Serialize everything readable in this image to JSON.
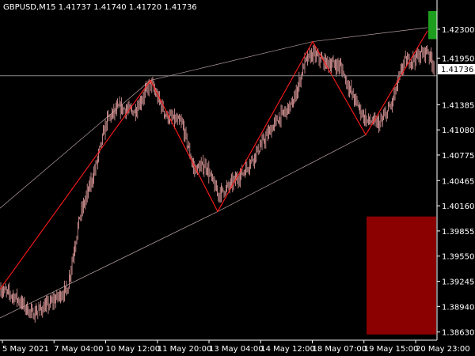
{
  "chart_data": {
    "type": "candlestick",
    "title": "GBPUSD,M15  1.41737 1.41740 1.41720 1.41736",
    "symbol": "GBPUSD",
    "timeframe": "M15",
    "ohlc": {
      "open": "1.41737",
      "high": "1.41740",
      "low": "1.41720",
      "close": "1.41736"
    },
    "current_price": 1.41736,
    "current_price_label": "1.41736",
    "y_ticks": [
      "1.42300",
      "1.41950",
      "1.41385",
      "1.41080",
      "1.40775",
      "1.40465",
      "1.40160",
      "1.39855",
      "1.39550",
      "1.39245",
      "1.38940",
      "1.38630"
    ],
    "x_ticks": [
      "5 May 2021",
      "7 May 04:00",
      "10 May 12:00",
      "11 May 20:00",
      "13 May 04:00",
      "14 May 12:00",
      "18 May 07:00",
      "19 May 15:00",
      "20 May 23:00"
    ],
    "ylim": [
      1.3855,
      1.4252
    ],
    "zigzag": [
      [
        0,
        1.3915
      ],
      [
        190,
        1.4168
      ],
      [
        275,
        1.4009
      ],
      [
        395,
        1.4215
      ],
      [
        462,
        1.4102
      ],
      [
        540,
        1.4228
      ]
    ],
    "channel_upper": [
      [
        0,
        1.4013
      ],
      [
        190,
        1.4168
      ],
      [
        395,
        1.4215
      ],
      [
        540,
        1.4232
      ]
    ],
    "channel_lower": [
      [
        0,
        1.388
      ],
      [
        275,
        1.4009
      ],
      [
        462,
        1.4102
      ]
    ],
    "price_path": [
      [
        0,
        1.3915
      ],
      [
        20,
        1.3905
      ],
      [
        40,
        1.3885
      ],
      [
        60,
        1.3895
      ],
      [
        85,
        1.3915
      ],
      [
        100,
        1.4
      ],
      [
        120,
        1.406
      ],
      [
        135,
        1.412
      ],
      [
        150,
        1.4135
      ],
      [
        170,
        1.413
      ],
      [
        190,
        1.4165
      ],
      [
        210,
        1.4125
      ],
      [
        230,
        1.4115
      ],
      [
        245,
        1.406
      ],
      [
        260,
        1.4065
      ],
      [
        275,
        1.403
      ],
      [
        290,
        1.404
      ],
      [
        310,
        1.406
      ],
      [
        330,
        1.409
      ],
      [
        350,
        1.412
      ],
      [
        370,
        1.414
      ],
      [
        385,
        1.419
      ],
      [
        395,
        1.42
      ],
      [
        410,
        1.419
      ],
      [
        430,
        1.4185
      ],
      [
        445,
        1.415
      ],
      [
        462,
        1.412
      ],
      [
        480,
        1.4115
      ],
      [
        495,
        1.414
      ],
      [
        510,
        1.419
      ],
      [
        525,
        1.4195
      ],
      [
        540,
        1.4205
      ],
      [
        548,
        1.4185
      ]
    ],
    "indicator_boxes": [
      {
        "type": "bullish",
        "color": "#1e9e1e",
        "price_from": 1.4218,
        "price_to": 1.4252
      },
      {
        "type": "bearish",
        "color": "#8b0000",
        "price_from": 1.386,
        "price_to": 1.4003
      }
    ],
    "colors": {
      "background": "#000000",
      "candles": "#e8a0a0",
      "zigzag": "#ff1a1a",
      "channel": "#b8a0a0",
      "price_line": "#888888",
      "text": "#ffffff"
    }
  }
}
